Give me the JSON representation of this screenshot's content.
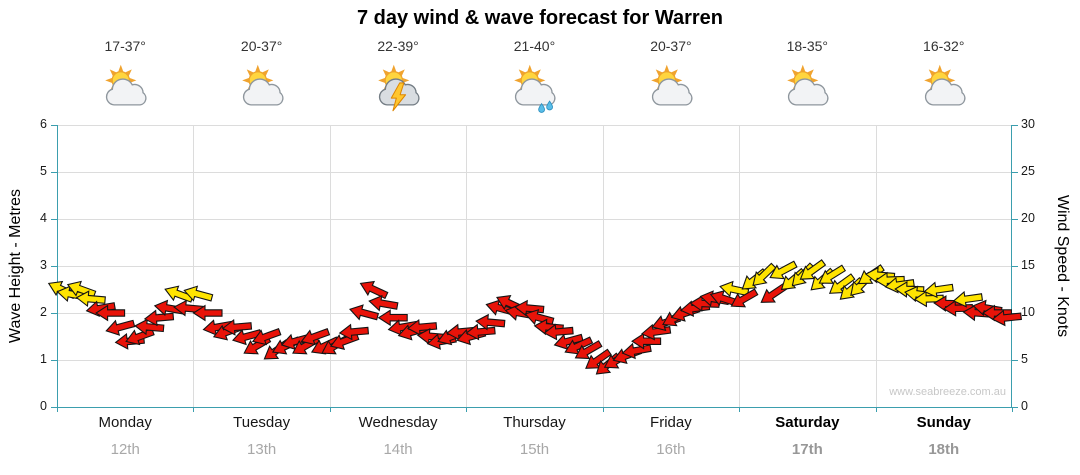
{
  "title": "7 day wind & wave forecast for Warren",
  "watermark": "www.seabreeze.com.au",
  "days": [
    {
      "temp": "17-37°",
      "icon": "partly-cloudy",
      "name": "Monday",
      "date": "12th",
      "bold": false
    },
    {
      "temp": "20-37°",
      "icon": "partly-cloudy",
      "name": "Tuesday",
      "date": "13th",
      "bold": false
    },
    {
      "temp": "22-39°",
      "icon": "thunderstorm",
      "name": "Wednesday",
      "date": "14th",
      "bold": false
    },
    {
      "temp": "21-40°",
      "icon": "rain-showers",
      "name": "Thursday",
      "date": "15th",
      "bold": false
    },
    {
      "temp": "20-37°",
      "icon": "partly-cloudy",
      "name": "Friday",
      "date": "16th",
      "bold": false
    },
    {
      "temp": "18-35°",
      "icon": "partly-cloudy",
      "name": "Saturday",
      "date": "17th",
      "bold": true
    },
    {
      "temp": "16-32°",
      "icon": "partly-cloudy",
      "name": "Sunday",
      "date": "18th",
      "bold": true
    }
  ],
  "chart_data": {
    "type": "wind-arrows",
    "title": "7 day wind & wave forecast for Warren",
    "left_axis": {
      "label": "Wave Height - Metres",
      "min": 0,
      "max": 6,
      "ticks": [
        0,
        1,
        2,
        3,
        4,
        5,
        6
      ]
    },
    "right_axis": {
      "label": "Wind Speed - Knots",
      "min": 0,
      "max": 30,
      "ticks": [
        0,
        5,
        10,
        15,
        20,
        25,
        30
      ]
    },
    "colors": {
      "red": "#e81309",
      "yellow": "#ffe400",
      "axis": "#3b9eae",
      "grid": "#dcdcdc"
    },
    "legend": "arrow color: y = yellow (~12+ knots), r = red (lighter winds); arrows point downwind, rotation in degrees clockwise from east",
    "series": [
      {
        "day": "Monday",
        "date": "12th",
        "knots": [
          12.5,
          12,
          12.5,
          11.5,
          10.5,
          10,
          8.5,
          7,
          7.5,
          8.5,
          9.5,
          10.5,
          12,
          10.5
        ],
        "dirs_deg": [
          205,
          190,
          200,
          185,
          170,
          180,
          165,
          175,
          160,
          185,
          175,
          190,
          200,
          185
        ],
        "colors": [
          "y",
          "y",
          "y",
          "y",
          "r",
          "r",
          "r",
          "r",
          "r",
          "r",
          "r",
          "r",
          "y",
          "r"
        ]
      },
      {
        "day": "Tuesday",
        "date": "13th",
        "knots": [
          12,
          10,
          8.5,
          8,
          8.5,
          7.5,
          6.5,
          7.5,
          6,
          6.5,
          7,
          6.5,
          7.5,
          6.5
        ],
        "dirs_deg": [
          195,
          180,
          170,
          160,
          175,
          165,
          150,
          160,
          145,
          155,
          165,
          150,
          160,
          155
        ],
        "colors": [
          "y",
          "r",
          "r",
          "r",
          "r",
          "r",
          "r",
          "r",
          "r",
          "r",
          "r",
          "r",
          "r",
          "r"
        ]
      },
      {
        "day": "Wednesday",
        "date": "14th",
        "knots": [
          6.5,
          7,
          8,
          10,
          12.5,
          11,
          9.5,
          8.5,
          8,
          8.5,
          7.5,
          7,
          7.5,
          8
        ],
        "dirs_deg": [
          150,
          160,
          175,
          195,
          205,
          190,
          180,
          170,
          165,
          175,
          185,
          170,
          160,
          175
        ],
        "colors": [
          "r",
          "r",
          "r",
          "r",
          "r",
          "r",
          "r",
          "r",
          "r",
          "r",
          "r",
          "r",
          "r",
          "r"
        ]
      },
      {
        "day": "Thursday",
        "date": "15th",
        "knots": [
          7.5,
          8,
          9,
          10.5,
          11,
          10,
          10.5,
          9.5,
          8.5,
          8,
          7,
          6.5,
          6,
          5
        ],
        "dirs_deg": [
          165,
          175,
          185,
          195,
          205,
          190,
          185,
          195,
          185,
          175,
          165,
          155,
          150,
          145
        ],
        "colors": [
          "r",
          "r",
          "r",
          "r",
          "r",
          "r",
          "r",
          "r",
          "r",
          "r",
          "r",
          "r",
          "r",
          "r"
        ]
      },
      {
        "day": "Friday",
        "date": "16th",
        "knots": [
          4.5,
          5,
          5.5,
          6,
          7,
          8,
          9,
          9.5,
          10,
          10.5,
          11,
          11.5,
          11.5,
          12.5
        ],
        "dirs_deg": [
          140,
          150,
          160,
          170,
          180,
          172,
          162,
          152,
          162,
          172,
          182,
          190,
          198,
          192
        ],
        "colors": [
          "r",
          "r",
          "r",
          "r",
          "r",
          "r",
          "r",
          "r",
          "r",
          "r",
          "r",
          "r",
          "r",
          "y"
        ]
      },
      {
        "day": "Saturday",
        "date": "17th",
        "knots": [
          11.5,
          13.5,
          14,
          12,
          14.5,
          13.5,
          14,
          14.5,
          13.5,
          14,
          13,
          12.5,
          13,
          14
        ],
        "dirs_deg": [
          150,
          142,
          136,
          146,
          152,
          140,
          134,
          144,
          138,
          148,
          144,
          138,
          134,
          146
        ],
        "colors": [
          "r",
          "y",
          "y",
          "r",
          "y",
          "y",
          "y",
          "y",
          "y",
          "y",
          "y",
          "y",
          "y",
          "y"
        ]
      },
      {
        "day": "Sunday",
        "date": "18th",
        "knots": [
          14,
          13.5,
          13,
          12.5,
          12,
          11.5,
          12.5,
          11,
          10.5,
          11.5,
          10,
          10.5,
          10,
          9.5
        ],
        "dirs_deg": [
          185,
          178,
          172,
          182,
          188,
          178,
          172,
          182,
          178,
          172,
          184,
          190,
          180,
          174
        ],
        "colors": [
          "y",
          "y",
          "y",
          "y",
          "y",
          "y",
          "y",
          "r",
          "r",
          "y",
          "r",
          "r",
          "r",
          "r"
        ]
      }
    ]
  }
}
